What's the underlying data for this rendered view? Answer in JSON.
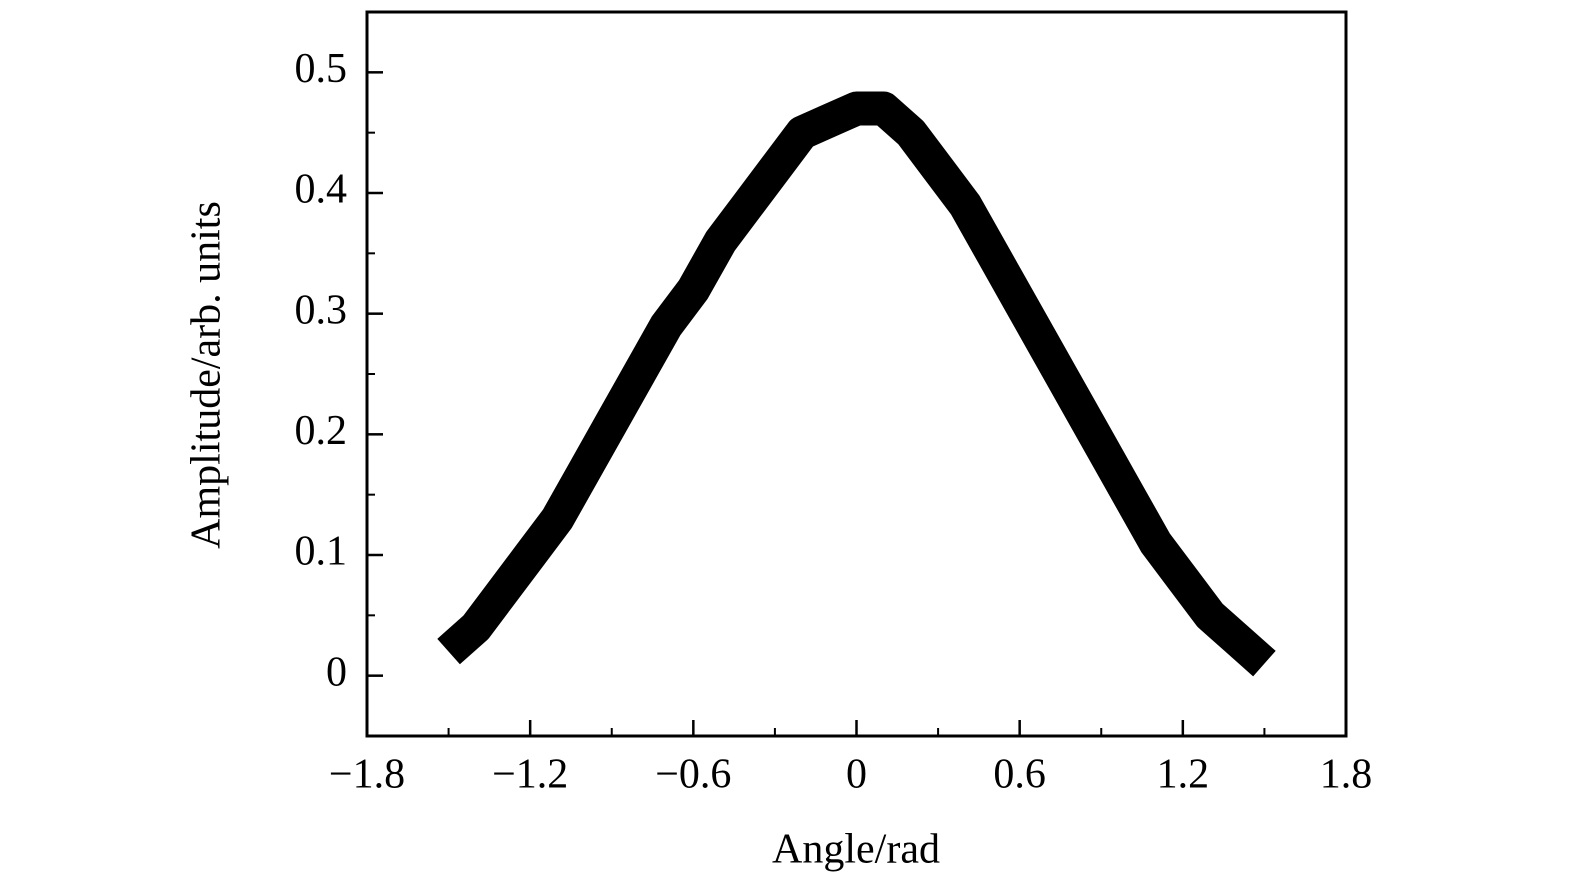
{
  "chart_data": {
    "type": "line",
    "xlabel": "Angle/rad",
    "ylabel": "Amplitude/arb. units",
    "x": [
      -1.5,
      -1.4,
      -1.3,
      -1.2,
      -1.1,
      -1.0,
      -0.9,
      -0.8,
      -0.7,
      -0.6,
      -0.5,
      -0.4,
      -0.3,
      -0.2,
      -0.1,
      0,
      0.1,
      0.2,
      0.3,
      0.4,
      0.5,
      0.6,
      0.7,
      0.8,
      0.9,
      1.0,
      1.1,
      1.2,
      1.3,
      1.4,
      1.5
    ],
    "series": [
      {
        "color": "#000000",
        "values": [
          0.02,
          0.04,
          0.07,
          0.1,
          0.13,
          0.17,
          0.21,
          0.25,
          0.29,
          0.32,
          0.36,
          0.39,
          0.42,
          0.45,
          0.46,
          0.47,
          0.47,
          0.45,
          0.42,
          0.39,
          0.35,
          0.31,
          0.27,
          0.23,
          0.19,
          0.15,
          0.11,
          0.08,
          0.05,
          0.03,
          0.01
        ]
      }
    ],
    "xlim": [
      -1.8,
      1.8
    ],
    "xticks": [
      {
        "value": -1.8,
        "label": "−1.8"
      },
      {
        "value": -1.2,
        "label": "−1.2"
      },
      {
        "value": -0.6,
        "label": "−0.6"
      },
      0,
      0.6,
      1.2,
      1.8
    ],
    "xminorticks": [
      -1.5,
      -0.9,
      -0.3,
      0.3,
      0.9,
      1.5
    ],
    "ylim": [
      -0.05,
      0.55
    ],
    "yticks": [
      0,
      0.1,
      0.2,
      0.3,
      0.4,
      0.5
    ],
    "yminorticks": [
      -0.05,
      0.05,
      0.15,
      0.25,
      0.35,
      0.45,
      0.55
    ],
    "grid": false
  }
}
